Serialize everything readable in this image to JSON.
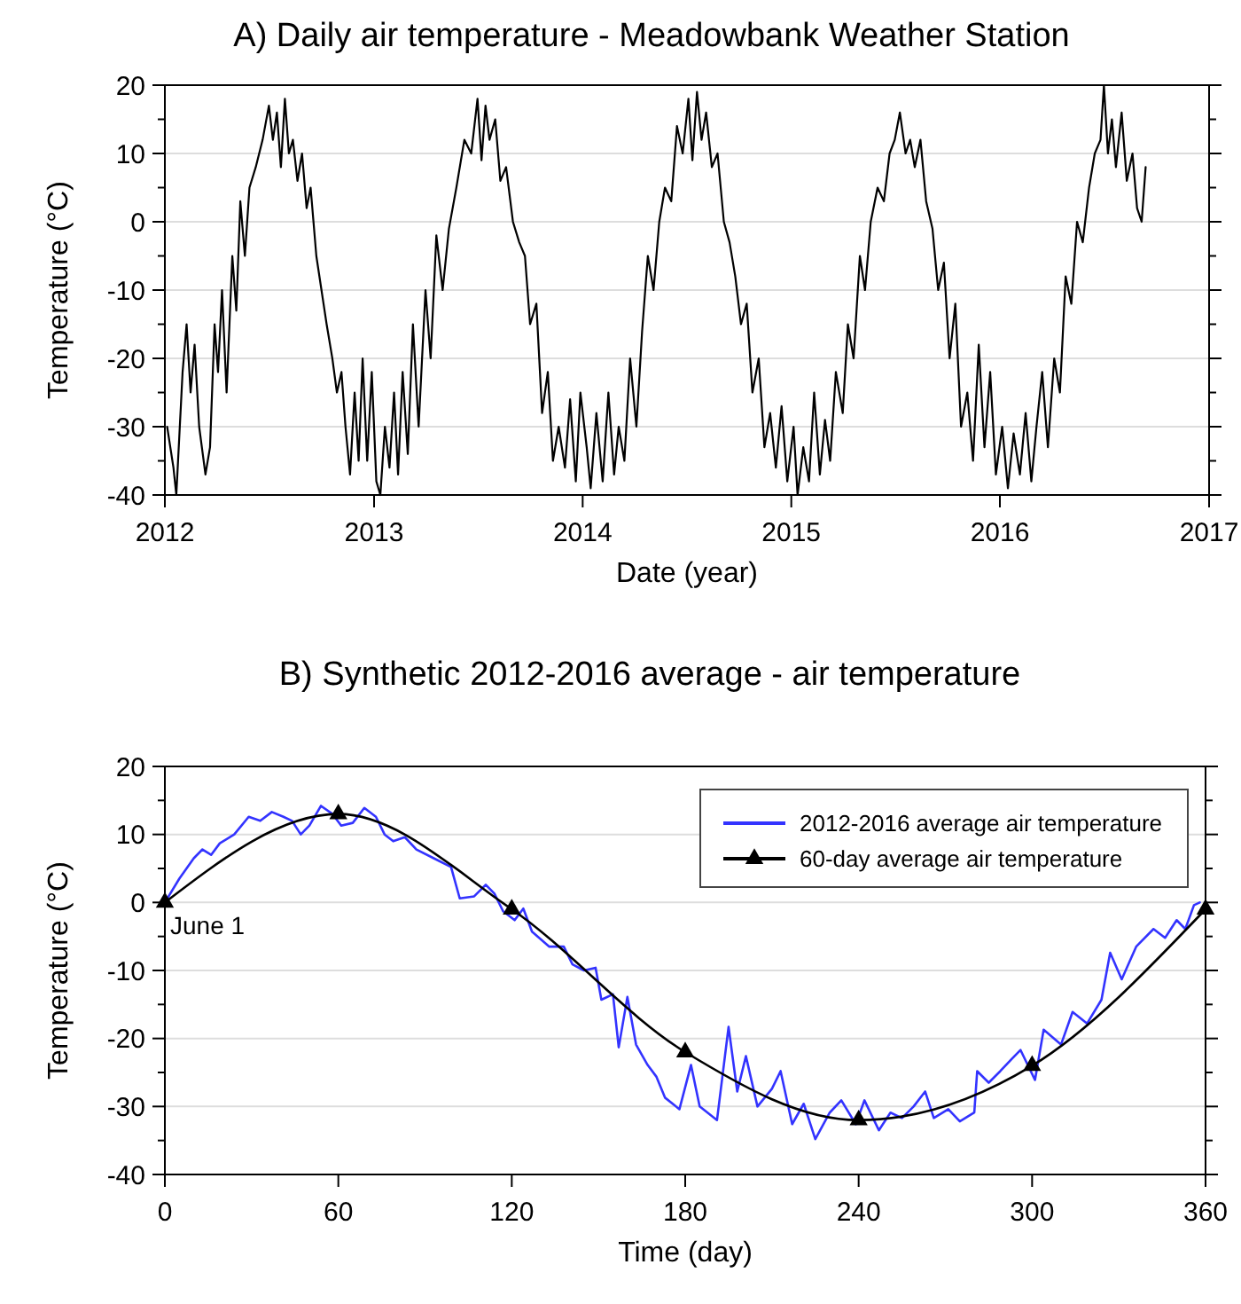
{
  "chart_data": [
    {
      "type": "line",
      "title": "A) Daily air temperature - Meadowbank Weather Station",
      "xlabel": "Date (year)",
      "ylabel": "Temperature (°C)",
      "xlim": [
        "2012",
        "2017"
      ],
      "xticks": [
        "2012",
        "2013",
        "2014",
        "2015",
        "2016",
        "2017"
      ],
      "ylim": [
        -40,
        20
      ],
      "yticks": [
        -40,
        {
          "value": -35,
          "label": null
        },
        -30,
        {
          "value": -25,
          "label": null
        },
        -20,
        {
          "value": -15,
          "label": null
        },
        -10,
        {
          "value": -5,
          "label": null
        },
        0,
        {
          "value": 5,
          "label": null
        },
        10,
        {
          "value": 15,
          "label": null
        },
        20
      ],
      "grid": "y",
      "legend": false,
      "series": [
        {
          "color": "#000000",
          "x": [
            "2012-01-05",
            "2012-01-16",
            "2012-01-21",
            "2012-02-01",
            "2012-02-08",
            "2012-02-15",
            "2012-02-22",
            "2012-03-01",
            "2012-03-12",
            "2012-03-20",
            "2012-03-28",
            "2012-04-03",
            "2012-04-10",
            "2012-04-18",
            "2012-04-28",
            "2012-05-05",
            "2012-05-12",
            "2012-05-20",
            "2012-05-28",
            "2012-06-08",
            "2012-06-20",
            "2012-07-01",
            "2012-07-08",
            "2012-07-15",
            "2012-07-22",
            "2012-07-29",
            "2012-08-05",
            "2012-08-12",
            "2012-08-20",
            "2012-08-28",
            "2012-09-05",
            "2012-09-12",
            "2012-09-22",
            "2012-10-01",
            "2012-10-10",
            "2012-10-20",
            "2012-10-28",
            "2012-11-05",
            "2012-11-12",
            "2012-11-20",
            "2012-11-28",
            "2012-12-05",
            "2012-12-12",
            "2012-12-20",
            "2012-12-28",
            "2013-01-05",
            "2013-01-12",
            "2013-01-20",
            "2013-01-28",
            "2013-02-05",
            "2013-02-12",
            "2013-02-20",
            "2013-03-01",
            "2013-03-10",
            "2013-03-20",
            "2013-04-01",
            "2013-04-10",
            "2013-04-20",
            "2013-05-01",
            "2013-05-12",
            "2013-05-25",
            "2013-06-08",
            "2013-06-20",
            "2013-07-01",
            "2013-07-08",
            "2013-07-15",
            "2013-07-22",
            "2013-08-01",
            "2013-08-10",
            "2013-08-20",
            "2013-09-01",
            "2013-09-12",
            "2013-09-22",
            "2013-10-01",
            "2013-10-12",
            "2013-10-22",
            "2013-11-01",
            "2013-11-10",
            "2013-11-20",
            "2013-12-01",
            "2013-12-10",
            "2013-12-20",
            "2013-12-28",
            "2014-01-08",
            "2014-01-15",
            "2014-01-25",
            "2014-02-05",
            "2014-02-15",
            "2014-02-25",
            "2014-03-05",
            "2014-03-15",
            "2014-03-25",
            "2014-04-05",
            "2014-04-15",
            "2014-04-25",
            "2014-05-05",
            "2014-05-15",
            "2014-05-25",
            "2014-06-05",
            "2014-06-15",
            "2014-06-25",
            "2014-07-05",
            "2014-07-12",
            "2014-07-20",
            "2014-07-28",
            "2014-08-05",
            "2014-08-15",
            "2014-08-25",
            "2014-09-05",
            "2014-09-15",
            "2014-09-25",
            "2014-10-05",
            "2014-10-15",
            "2014-10-25",
            "2014-11-05",
            "2014-11-15",
            "2014-11-25",
            "2014-12-05",
            "2014-12-15",
            "2014-12-25",
            "2015-01-05",
            "2015-01-12",
            "2015-01-22",
            "2015-02-01",
            "2015-02-10",
            "2015-02-20",
            "2015-03-01",
            "2015-03-10",
            "2015-03-20",
            "2015-04-01",
            "2015-04-10",
            "2015-04-20",
            "2015-05-01",
            "2015-05-10",
            "2015-05-20",
            "2015-06-01",
            "2015-06-12",
            "2015-06-22",
            "2015-07-01",
            "2015-07-10",
            "2015-07-20",
            "2015-07-28",
            "2015-08-05",
            "2015-08-15",
            "2015-08-25",
            "2015-09-05",
            "2015-09-15",
            "2015-09-25",
            "2015-10-05",
            "2015-10-15",
            "2015-10-25",
            "2015-11-05",
            "2015-11-15",
            "2015-11-25",
            "2015-12-05",
            "2015-12-15",
            "2015-12-25",
            "2016-01-05",
            "2016-01-15",
            "2016-01-25",
            "2016-02-05",
            "2016-02-15",
            "2016-02-25",
            "2016-03-05",
            "2016-03-15",
            "2016-03-25",
            "2016-04-05",
            "2016-04-15",
            "2016-04-25",
            "2016-05-05",
            "2016-05-15",
            "2016-05-25",
            "2016-06-05",
            "2016-06-15",
            "2016-06-25",
            "2016-07-01",
            "2016-07-08",
            "2016-07-15",
            "2016-07-22",
            "2016-08-01",
            "2016-08-10",
            "2016-08-20",
            "2016-08-28",
            "2016-09-05",
            "2016-09-12"
          ],
          "values": [
            -30,
            -36,
            -40,
            -22,
            -15,
            -25,
            -18,
            -30,
            -37,
            -33,
            -15,
            -22,
            -10,
            -25,
            -5,
            -13,
            3,
            -5,
            5,
            8,
            12,
            17,
            12,
            16,
            8,
            18,
            10,
            12,
            6,
            10,
            2,
            5,
            -5,
            -10,
            -15,
            -20,
            -25,
            -22,
            -30,
            -37,
            -25,
            -35,
            -20,
            -35,
            -22,
            -38,
            -40,
            -30,
            -36,
            -25,
            -37,
            -22,
            -34,
            -15,
            -30,
            -10,
            -20,
            -2,
            -10,
            -1,
            5,
            12,
            10,
            18,
            9,
            17,
            12,
            15,
            6,
            8,
            0,
            -3,
            -5,
            -15,
            -12,
            -28,
            -22,
            -35,
            -30,
            -36,
            -26,
            -38,
            -25,
            -33,
            -39,
            -28,
            -38,
            -25,
            -37,
            -30,
            -35,
            -20,
            -30,
            -16,
            -5,
            -10,
            0,
            5,
            3,
            14,
            10,
            18,
            9,
            19,
            12,
            16,
            8,
            10,
            0,
            -3,
            -8,
            -15,
            -12,
            -25,
            -20,
            -33,
            -28,
            -36,
            -27,
            -38,
            -30,
            -40,
            -33,
            -38,
            -25,
            -37,
            -29,
            -35,
            -22,
            -28,
            -15,
            -20,
            -5,
            -10,
            0,
            5,
            3,
            10,
            12,
            16,
            10,
            12,
            8,
            12,
            3,
            -1,
            -10,
            -6,
            -20,
            -12,
            -30,
            -25,
            -35,
            -18,
            -33,
            -22,
            -37,
            -30,
            -39,
            -31,
            -37,
            -28,
            -38,
            -30,
            -22,
            -33,
            -20,
            -25,
            -8,
            -12,
            0,
            -3,
            5,
            10,
            12,
            20,
            10,
            15,
            8,
            16,
            6,
            10,
            2,
            0,
            8
          ]
        }
      ]
    },
    {
      "type": "line",
      "title": "B) Synthetic 2012-2016 average - air temperature",
      "xlabel": "Time (day)",
      "ylabel": "Temperature (°C)",
      "xlim": [
        0,
        360
      ],
      "xticks": [
        0,
        60,
        120,
        180,
        240,
        300,
        360
      ],
      "ylim": [
        -40,
        20
      ],
      "yticks": [
        -40,
        {
          "value": -35,
          "label": null
        },
        -30,
        {
          "value": -25,
          "label": null
        },
        -20,
        {
          "value": -15,
          "label": null
        },
        -10,
        {
          "value": -5,
          "label": null
        },
        0,
        {
          "value": 5,
          "label": null
        },
        10,
        {
          "value": 15,
          "label": null
        },
        20
      ],
      "grid": "y",
      "legend": "top right",
      "annotations": [
        {
          "text": "June 1",
          "x": 0,
          "y": 0
        }
      ],
      "series": [
        {
          "name": "2012-2016 average air temperature",
          "color": "#3333ff",
          "marker": "none",
          "x": [
            0,
            5,
            10,
            13,
            16,
            19,
            24,
            29,
            33,
            37,
            41,
            44,
            47,
            50,
            54,
            58,
            61,
            65,
            69,
            73,
            76,
            79,
            83,
            87,
            93,
            99,
            102,
            107,
            111,
            114,
            117,
            121,
            124,
            127,
            133,
            138,
            141,
            145,
            149,
            151,
            155,
            157,
            160,
            163,
            167,
            170,
            173,
            178,
            182,
            185,
            191,
            195,
            198,
            201,
            205,
            210,
            213,
            217,
            221,
            225,
            230,
            234,
            239,
            242,
            247,
            251,
            255,
            259,
            263,
            266,
            271,
            275,
            280,
            281,
            285,
            289,
            293,
            296,
            301,
            304,
            310,
            314,
            319,
            324,
            327,
            331,
            336,
            342,
            346,
            350,
            353,
            356,
            358
          ],
          "values": [
            0,
            3.5,
            6.5,
            7.8,
            7,
            8.7,
            10,
            12.6,
            12,
            13.3,
            12.6,
            12,
            10,
            11.3,
            14.2,
            13,
            11.3,
            11.7,
            13.9,
            12.6,
            10,
            9,
            9.6,
            7.8,
            6.5,
            5.2,
            0.6,
            0.9,
            2.6,
            1.3,
            -1.3,
            -2.6,
            -0.9,
            -4.3,
            -6.5,
            -6.5,
            -9.1,
            -10,
            -9.6,
            -14.3,
            -13.5,
            -21.3,
            -13.9,
            -20.9,
            -23.9,
            -25.6,
            -28.7,
            -30.4,
            -23.9,
            -30,
            -32,
            -18.3,
            -27.8,
            -22.6,
            -30,
            -27.4,
            -24.8,
            -32.6,
            -29.6,
            -34.8,
            -30.9,
            -29.1,
            -32.6,
            -29.1,
            -33.5,
            -30.9,
            -31.7,
            -30,
            -27.8,
            -31.7,
            -30.4,
            -32.2,
            -30.9,
            -24.8,
            -26.5,
            -24.8,
            -23,
            -21.7,
            -26.1,
            -18.7,
            -20.9,
            -16.1,
            -17.8,
            -14.3,
            -7.4,
            -11.3,
            -6.5,
            -3.9,
            -5.2,
            -2.6,
            -3.9,
            -0.4,
            0
          ]
        },
        {
          "name": "60-day average air temperature",
          "color": "#000000",
          "marker": "triangle",
          "x": [
            0,
            60,
            120,
            180,
            240,
            300,
            360
          ],
          "values": [
            0,
            13,
            -1,
            -22,
            -32,
            -24,
            -1
          ]
        }
      ]
    }
  ]
}
